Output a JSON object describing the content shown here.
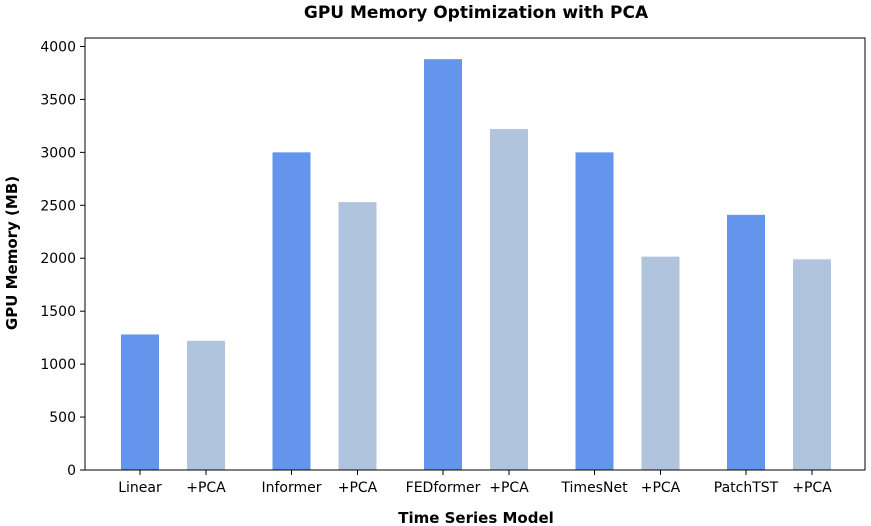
{
  "chart_data": {
    "type": "bar",
    "title": "GPU Memory Optimization with PCA",
    "xlabel": "Time Series Model",
    "ylabel": "GPU Memory (MB)",
    "ylim": [
      0,
      4080
    ],
    "yticks": [
      0,
      500,
      1000,
      1500,
      2000,
      2500,
      3000,
      3500,
      4000
    ],
    "grid": false,
    "legend": "none",
    "colors": {
      "base": "#6495ED",
      "pca": "#B0C4DE"
    },
    "categories": [
      "Linear",
      "+PCA",
      "Informer",
      "+PCA",
      "FEDformer",
      "+PCA",
      "TimesNet",
      "+PCA",
      "PatchTST",
      "+PCA"
    ],
    "values": [
      1280,
      1220,
      3000,
      2530,
      3880,
      3220,
      3000,
      2015,
      2410,
      1990
    ],
    "bar_kind": [
      "base",
      "pca",
      "base",
      "pca",
      "base",
      "pca",
      "base",
      "pca",
      "base",
      "pca"
    ]
  }
}
